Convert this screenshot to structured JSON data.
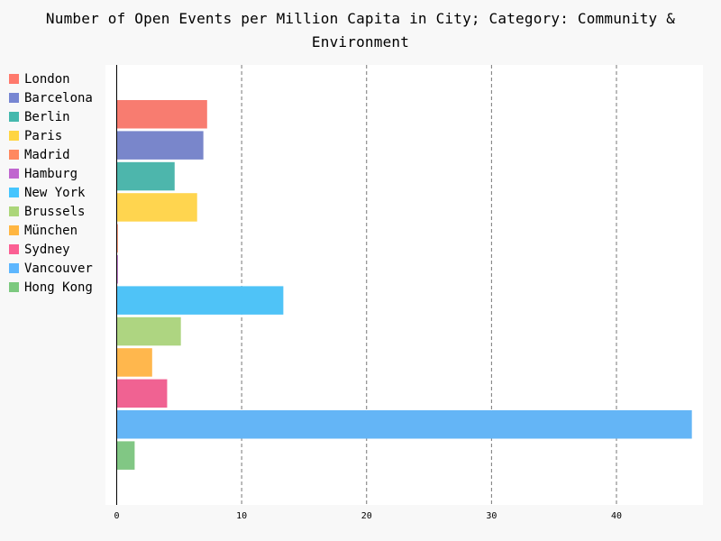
{
  "chart_data": {
    "type": "bar",
    "orientation": "horizontal",
    "title": "Number of Open Events per Million Capita in City; Category: Community & Environment",
    "xlabel": "",
    "ylabel": "",
    "xlim": [
      0,
      46.5
    ],
    "xticks": [
      "0",
      "10",
      "20",
      "30",
      "40"
    ],
    "grid": "vertical dashed",
    "legend_position": "left",
    "series": [
      {
        "name": "London",
        "value": 7.2,
        "color": "#f87c70"
      },
      {
        "name": "Barcelona",
        "value": 6.9,
        "color": "#7986cb"
      },
      {
        "name": "Berlin",
        "value": 4.6,
        "color": "#4db6ac"
      },
      {
        "name": "Paris",
        "value": 6.4,
        "color": "#ffd54f"
      },
      {
        "name": "Madrid",
        "value": 0.05,
        "color": "#ff8a65"
      },
      {
        "name": "Hamburg",
        "value": 0.05,
        "color": "#ba68c8"
      },
      {
        "name": "New York",
        "value": 13.3,
        "color": "#4fc3f7"
      },
      {
        "name": "Brussels",
        "value": 5.1,
        "color": "#aed581"
      },
      {
        "name": "München",
        "value": 2.8,
        "color": "#ffb74d"
      },
      {
        "name": "Sydney",
        "value": 4.0,
        "color": "#f06292"
      },
      {
        "name": "Vancouver",
        "value": 46.0,
        "color": "#64b5f6"
      },
      {
        "name": "Hong Kong",
        "value": 1.4,
        "color": "#81c784"
      }
    ]
  }
}
